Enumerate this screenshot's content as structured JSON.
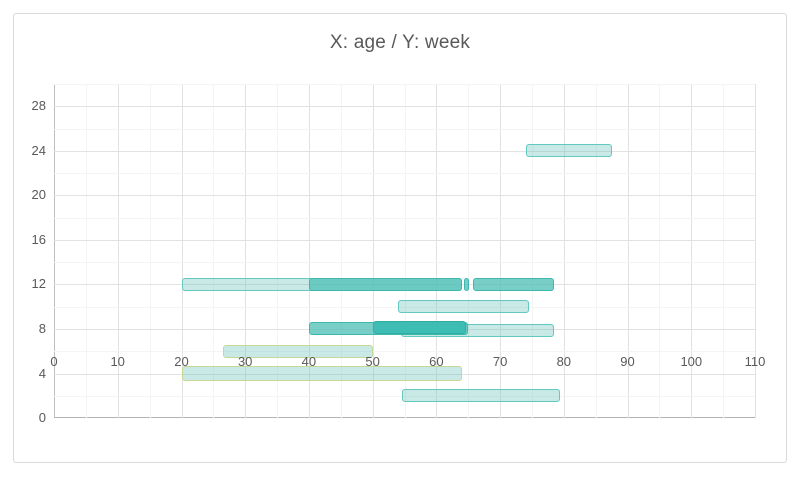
{
  "chart_data": {
    "type": "bar",
    "orientation": "horizontal-range",
    "title": "X: age / Y: week",
    "xlabel": "age",
    "ylabel": "week",
    "grid": true,
    "legend": "none",
    "x_axis": {
      "min": 0,
      "max": 110,
      "major_step": 10,
      "minor_step": 5,
      "tick_labels": [
        0,
        10,
        20,
        30,
        40,
        50,
        60,
        70,
        80,
        90,
        100,
        110
      ]
    },
    "y_axis": {
      "min": 0,
      "max": 30,
      "major_step": 4,
      "minor_step": 2,
      "tick_labels": [
        0,
        4,
        8,
        12,
        16,
        20,
        24,
        28
      ]
    },
    "bars": [
      {
        "week": 24,
        "age_from": 74,
        "age_to": 87.5,
        "shade": "light"
      },
      {
        "week": 12,
        "age_from": 20,
        "age_to": 64,
        "shade": "light"
      },
      {
        "week": 12,
        "age_from": 40,
        "age_to": 64,
        "shade": "medium"
      },
      {
        "week": 12,
        "age_from": 64.3,
        "age_to": 65.2,
        "shade": "medium"
      },
      {
        "week": 12,
        "age_from": 65.7,
        "age_to": 78.4,
        "shade": "medium"
      },
      {
        "week": 10,
        "age_from": 54,
        "age_to": 74.5,
        "shade": "light"
      },
      {
        "week": 8,
        "age_from": 54.5,
        "age_to": 78.5,
        "shade": "light",
        "dy": 1.5
      },
      {
        "week": 8,
        "age_from": 40,
        "age_to": 65,
        "shade": "medium",
        "dy": -0.5
      },
      {
        "week": 8,
        "age_from": 50,
        "age_to": 64.6,
        "shade": "dark",
        "dy": -1
      },
      {
        "week": 6,
        "age_from": 26.5,
        "age_to": 50,
        "shade": "green"
      },
      {
        "week": 4,
        "age_from": 20,
        "age_to": 64,
        "shade": "green",
        "h": 15
      },
      {
        "week": 2,
        "age_from": 54.6,
        "age_to": 79.4,
        "shade": "light"
      }
    ],
    "colors": {
      "title_text": "#595959",
      "tick_text": "#595959",
      "gridline_minor": "#f4f4f4",
      "gridline_major": "#e2e2e2",
      "frame_border": "#d9d9d9",
      "shades": {
        "light": {
          "fill": "rgba(98,192,183,0.35)",
          "border": "#63c8c0"
        },
        "medium": {
          "fill": "rgba(76,191,182,0.75)",
          "border": "#3eb7af"
        },
        "dark": {
          "fill": "rgba(60,188,179,0.95)",
          "border": "#2fada5"
        },
        "green": {
          "fill": "rgba(98,192,183,0.35)",
          "border": "#c7d795"
        }
      }
    }
  }
}
